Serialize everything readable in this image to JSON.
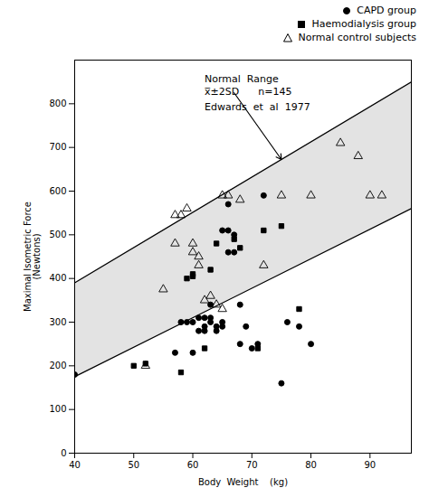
{
  "chart_data": {
    "type": "scatter",
    "xlabel": "Body  Weight    (kg)",
    "ylabel": "Maximal Isometric Force\n(Newtons)",
    "xlim": [
      40,
      97
    ],
    "ylim": [
      0,
      900
    ],
    "xticks": [
      40,
      50,
      60,
      70,
      80,
      90
    ],
    "yticks": [
      0,
      100,
      200,
      300,
      400,
      500,
      600,
      700,
      800
    ],
    "legend": "top",
    "series": [
      {
        "name": "CAPD group",
        "color": "#000000",
        "marker": "circle",
        "x": [
          40,
          57,
          58,
          59,
          60,
          60,
          61,
          61,
          62,
          62,
          62,
          63,
          63,
          63,
          64,
          64,
          65,
          65,
          65,
          66,
          66,
          66,
          67,
          67,
          68,
          68,
          69,
          70,
          71,
          72,
          75,
          76,
          78,
          80
        ],
        "y": [
          180,
          230,
          300,
          300,
          230,
          300,
          280,
          310,
          280,
          290,
          310,
          300,
          310,
          340,
          280,
          290,
          290,
          300,
          510,
          460,
          510,
          570,
          500,
          460,
          250,
          340,
          290,
          240,
          250,
          590,
          160,
          300,
          290,
          250
        ]
      },
      {
        "name": "Haemodialysis group",
        "color": "#000000",
        "marker": "square",
        "x": [
          50,
          52,
          58,
          59,
          60,
          60,
          62,
          63,
          64,
          67,
          68,
          71,
          72,
          75,
          78
        ],
        "y": [
          200,
          205,
          185,
          400,
          410,
          405,
          240,
          420,
          480,
          490,
          470,
          240,
          510,
          520,
          330
        ]
      },
      {
        "name": "Normal control subjects",
        "color": "#000000",
        "marker": "triangle-open",
        "x": [
          52,
          55,
          57,
          57,
          58,
          59,
          60,
          60,
          61,
          61,
          62,
          63,
          64,
          65,
          65,
          66,
          68,
          72,
          75,
          80,
          85,
          88,
          90,
          92
        ],
        "y": [
          200,
          375,
          545,
          480,
          545,
          560,
          480,
          460,
          450,
          430,
          350,
          360,
          340,
          330,
          590,
          590,
          580,
          430,
          590,
          590,
          710,
          680,
          590,
          590
        ]
      }
    ],
    "band": {
      "color": "#c8c8c8",
      "upper": {
        "x": [
          40,
          97
        ],
        "y": [
          390,
          850
        ],
        "color": "#000000"
      },
      "lower": {
        "x": [
          40,
          97
        ],
        "y": [
          175,
          560
        ],
        "color": "#000000"
      }
    },
    "annotations": [
      {
        "text": "Normal  Range",
        "x": 62,
        "y": 850
      },
      {
        "text": "x̅±2SD      n=145",
        "x": 62,
        "y": 820
      },
      {
        "text": "Edwards  et  al  1977",
        "x": 62,
        "y": 785
      }
    ],
    "arrow": {
      "x": 75,
      "y": 672.4561403508771,
      "from_x": 67,
      "from_y": 825
    }
  }
}
